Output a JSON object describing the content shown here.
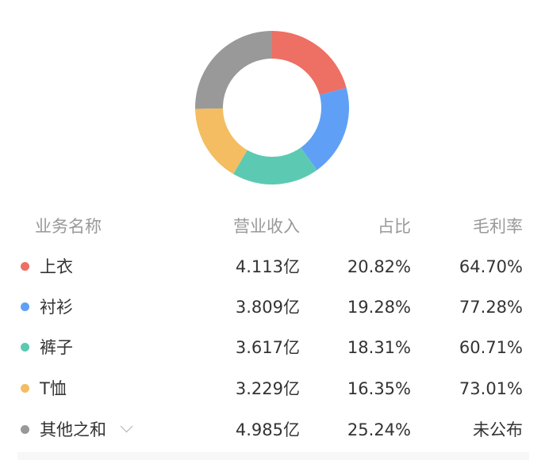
{
  "chart_data": {
    "type": "pie",
    "donut": true,
    "categories": [
      "上衣",
      "衬衫",
      "裤子",
      "T恤",
      "其他之和"
    ],
    "values": [
      20.82,
      19.28,
      18.31,
      16.35,
      25.24
    ],
    "colors": [
      "#ee6f63",
      "#5fa0f6",
      "#5ccab3",
      "#f4bd62",
      "#999999"
    ]
  },
  "table": {
    "headers": [
      "业务名称",
      "营业收入",
      "占比",
      "毛利率"
    ],
    "rows": [
      {
        "name": "上衣",
        "revenue": "4.113亿",
        "share": "20.82%",
        "margin": "64.70%"
      },
      {
        "name": "衬衫",
        "revenue": "3.809亿",
        "share": "19.28%",
        "margin": "77.28%"
      },
      {
        "name": "裤子",
        "revenue": "3.617亿",
        "share": "18.31%",
        "margin": "60.71%"
      },
      {
        "name": "T恤",
        "revenue": "3.229亿",
        "share": "16.35%",
        "margin": "73.01%"
      },
      {
        "name": "其他之和",
        "revenue": "4.985亿",
        "share": "25.24%",
        "margin": "未公布"
      }
    ]
  }
}
